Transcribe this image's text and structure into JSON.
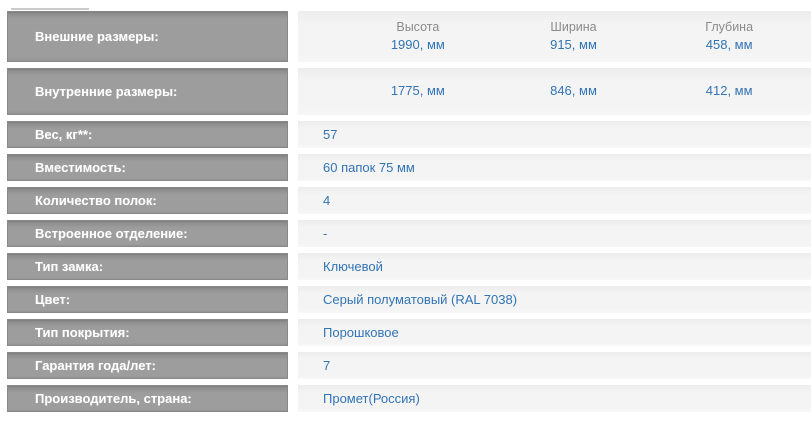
{
  "page": {
    "type": "product-specifications-table",
    "language": "ru"
  },
  "colors": {
    "label_bg": "#9d9d9d",
    "label_border": "#898989",
    "label_text": "#ffffff",
    "value_bg": "#f4f4f5",
    "value_text": "#3274b4",
    "dim_header_text": "#8b8b8b"
  },
  "table": {
    "outer_dimensions": {
      "label": "Внешние размеры:",
      "columns": [
        {
          "header": "Высота",
          "value": "1990, мм"
        },
        {
          "header": "Ширина",
          "value": "915, мм"
        },
        {
          "header": "Глубина",
          "value": "458, мм"
        }
      ]
    },
    "inner_dimensions": {
      "label": "Внутренние размеры:",
      "values": [
        "1775, мм",
        "846, мм",
        "412, мм"
      ]
    },
    "rows": [
      {
        "label": "Вес, кг**:",
        "value": "57"
      },
      {
        "label": "Вместимость:",
        "value": "60 папок 75 мм"
      },
      {
        "label": "Количество полок:",
        "value": "4"
      },
      {
        "label": "Встроенное отделение:",
        "value": "-"
      },
      {
        "label": "Тип замка:",
        "value": "Ключевой"
      },
      {
        "label": "Цвет:",
        "value": "Серый полуматовый (RAL 7038)"
      },
      {
        "label": "Тип покрытия:",
        "value": "Порошковое"
      },
      {
        "label": "Гарантия года/лет:",
        "value": "7"
      },
      {
        "label": "Производитель, страна:",
        "value": "Промет(Россия)"
      }
    ]
  }
}
